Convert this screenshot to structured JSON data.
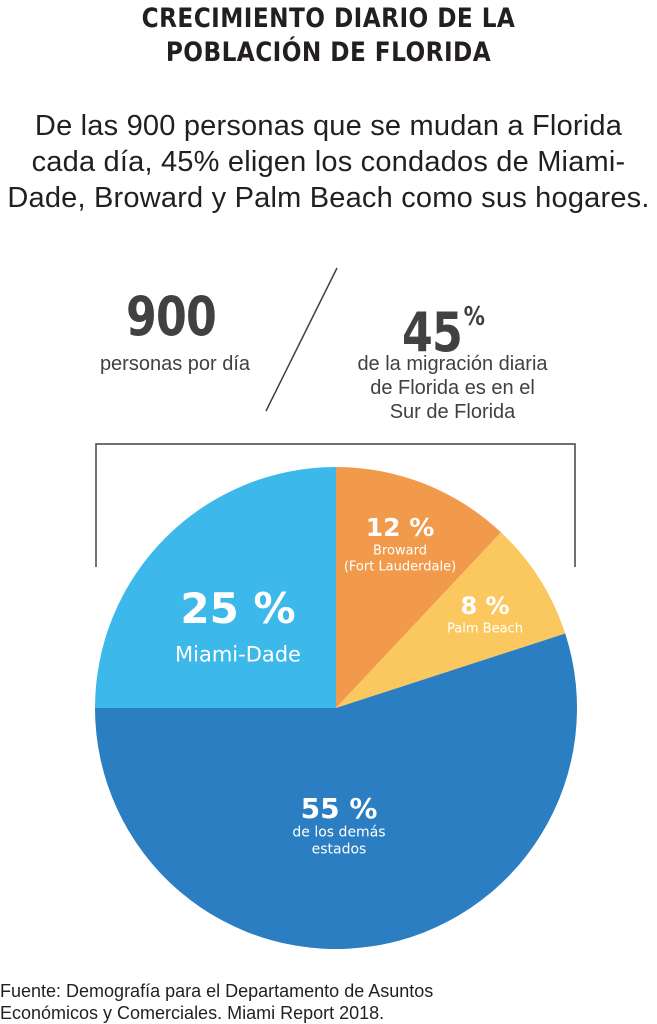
{
  "title_lines": [
    "CRECIMIENTO DIARIO DE LA",
    "POBLACIÓN DE FLORIDA"
  ],
  "subtitle_lines": [
    "De las 900 personas que se mudan a Florida",
    "cada día, 45% eligen los condados de Miami-",
    "Dade, Broward y Palm Beach como sus hogares."
  ],
  "stats": {
    "left": {
      "number": "900",
      "text": "personas por día"
    },
    "right": {
      "number": "45",
      "sup": "%",
      "text_lines": [
        "de la migración diaria",
        "de Florida es en el",
        "Sur de Florida"
      ]
    }
  },
  "colors": {
    "miami_dade": "#3cb9ea",
    "broward": "#f29a4c",
    "palm_beach": "#fbc85f",
    "others": "#2a7ec1",
    "text": "#231f20",
    "stat_text": "#414042"
  },
  "chart_data": {
    "type": "pie",
    "slices": [
      {
        "key": "broward",
        "value": 12,
        "pct_label": "12 %",
        "label_lines": [
          "Broward",
          "(Fort Lauderdale)"
        ]
      },
      {
        "key": "palm_beach",
        "value": 8,
        "pct_label": "8 %",
        "label_lines": [
          "Palm Beach"
        ]
      },
      {
        "key": "others",
        "value": 55,
        "pct_label": "55 %",
        "label_lines": [
          "de los demás",
          "estados"
        ]
      },
      {
        "key": "miami_dade",
        "value": 25,
        "pct_label": "25 %",
        "label_lines": [
          "Miami-Dade"
        ]
      }
    ]
  },
  "source_lines": [
    "Fuente: Demografía para el Departamento de Asuntos",
    "Económicos y Comerciales. Miami Report 2018."
  ]
}
